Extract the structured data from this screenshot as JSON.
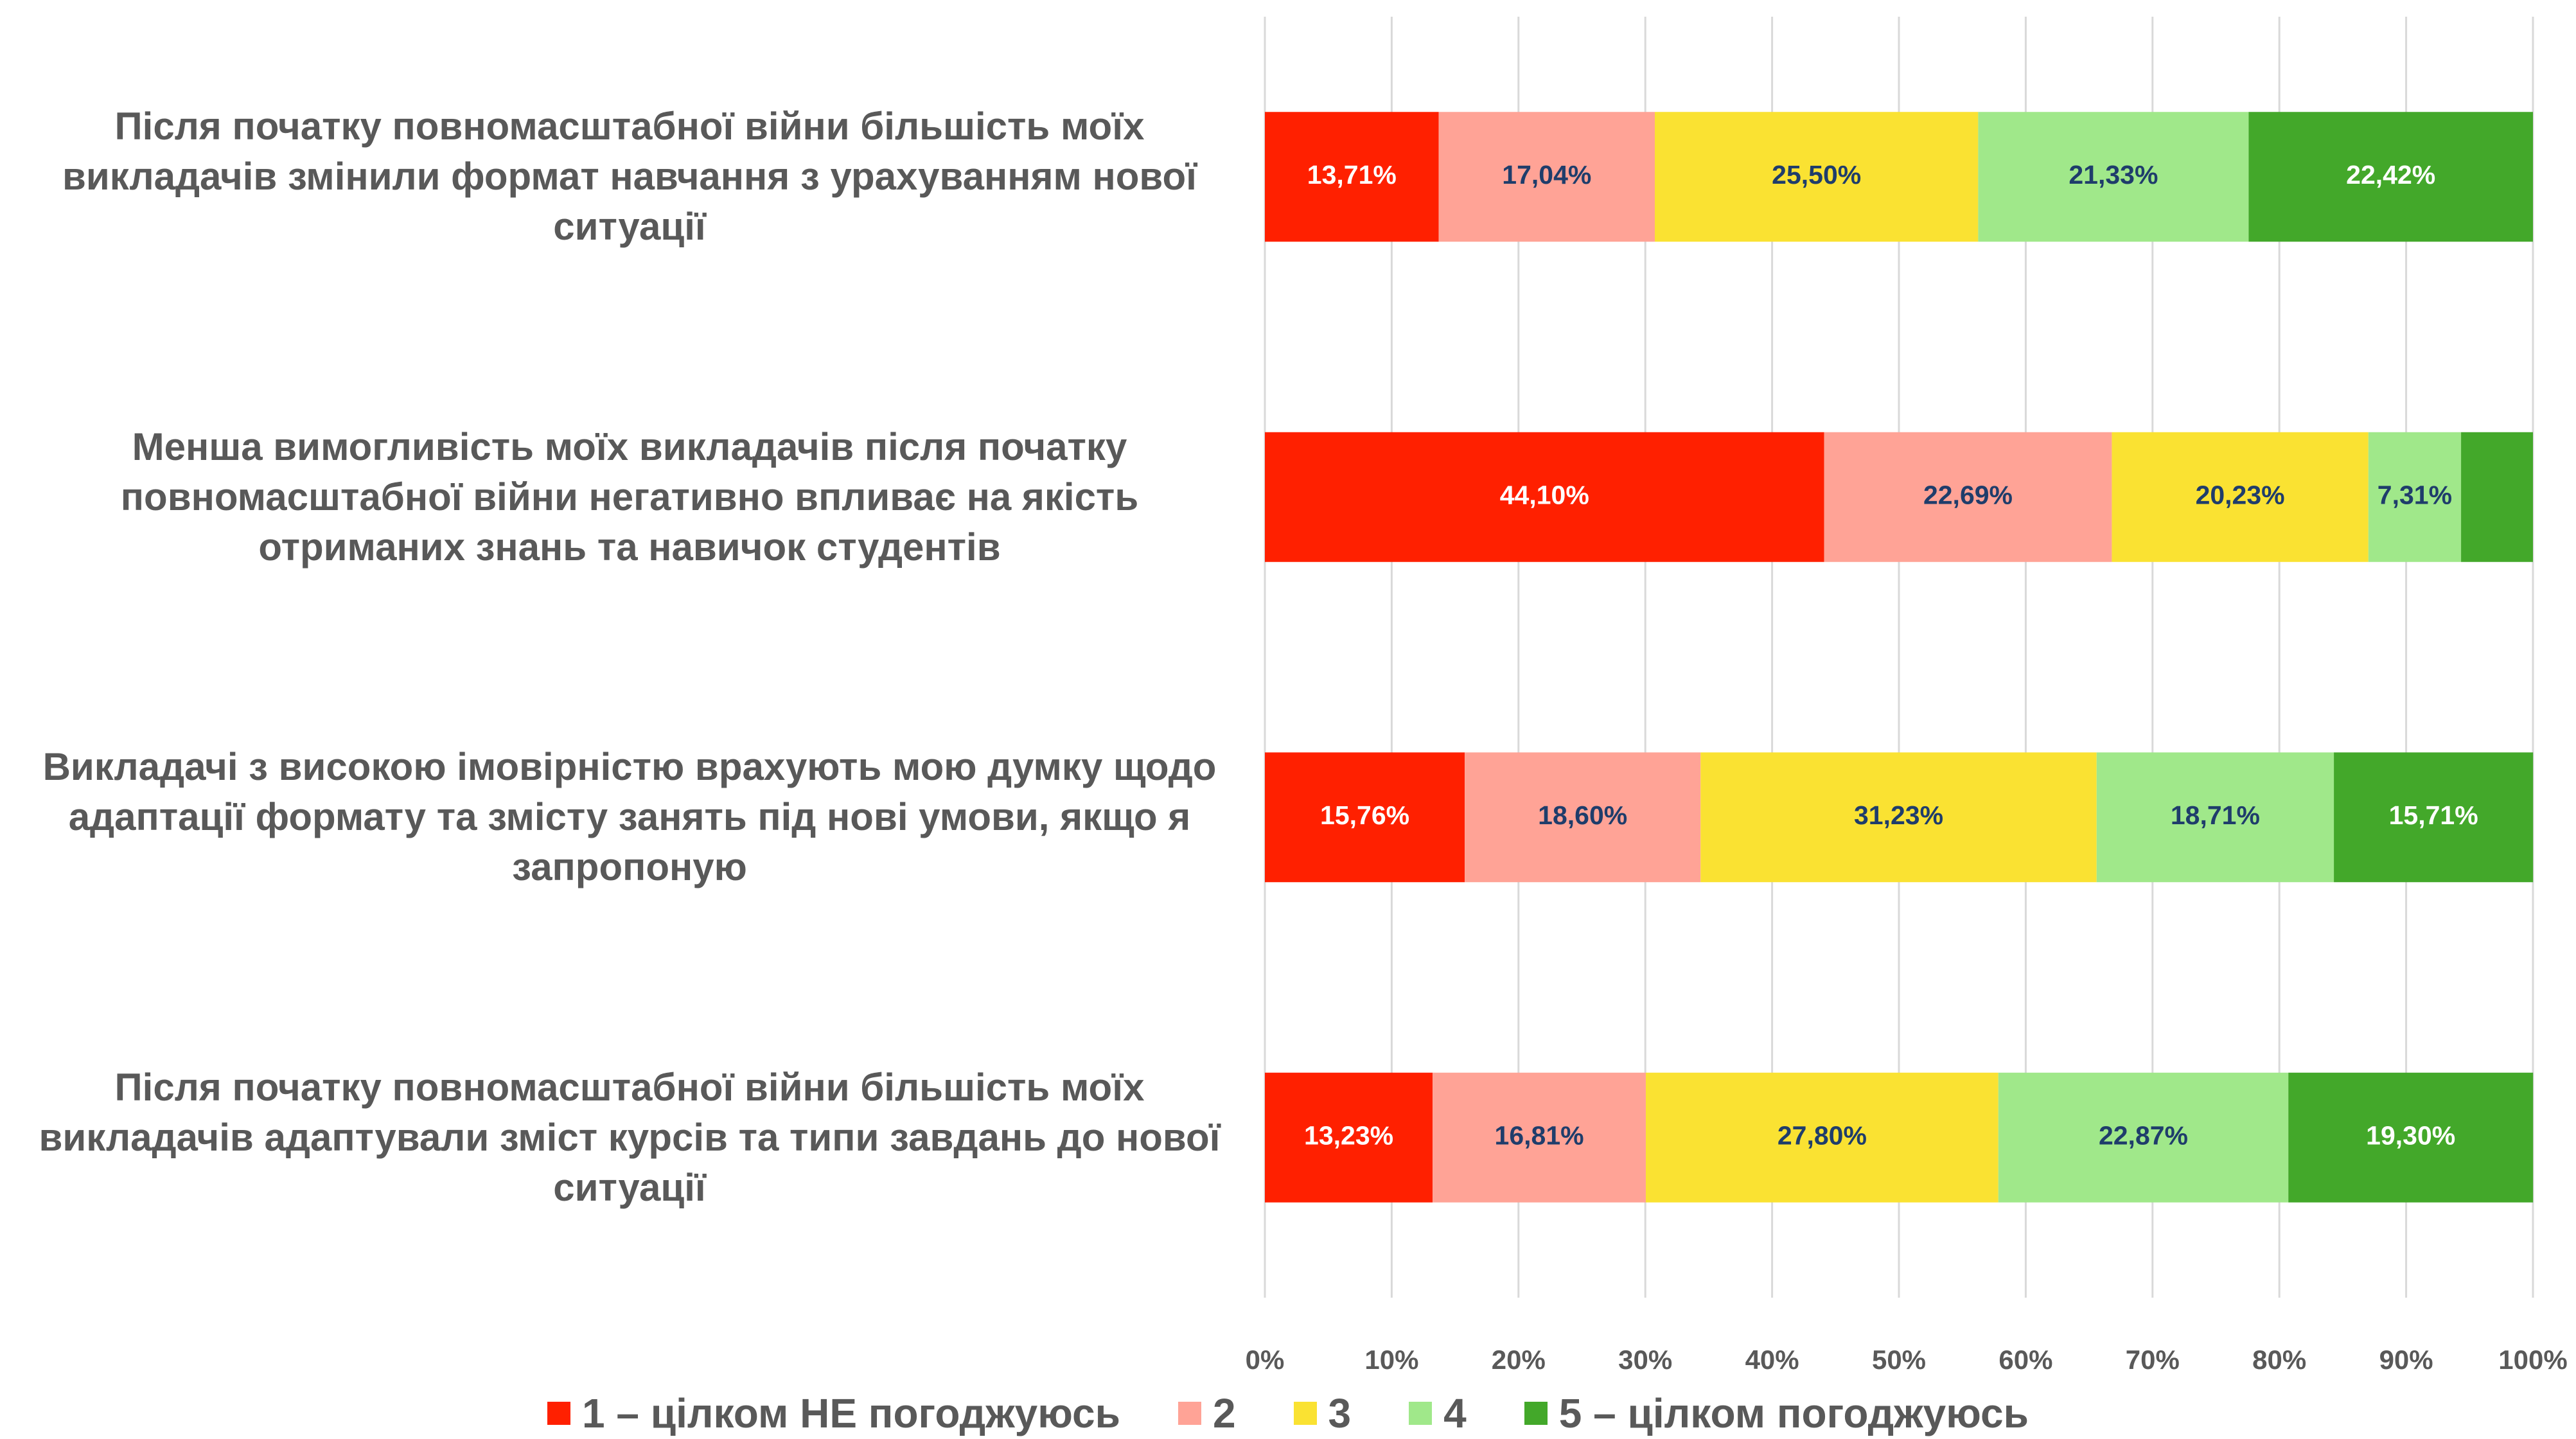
{
  "chart_data": {
    "type": "stacked_bar_horizontal",
    "categories": [
      "Після початку повномасштабної війни більшість моїх викладачів змінили формат навчання з урахуванням нової ситуації",
      "Менша вимогливість моїх викладачів після початку повномасштабної війни негативно впливає на якість отриманих знань та навичок студентів",
      "Викладачі з високою імовірністю врахують мою думку щодо адаптації формату та змісту занять під нові умови, якщо я запропоную",
      "Після початку повномасштабної війни більшість моїх викладачів адаптували зміст курсів та типи завдань до нової ситуації"
    ],
    "series": [
      {
        "name": "1 – цілком НЕ погоджуюсь",
        "color": "#ff2000",
        "label_color": "#ffffff",
        "values": [
          13.71,
          44.1,
          15.76,
          13.23
        ],
        "value_labels": [
          "13,71%",
          "44,10%",
          "15,76%",
          "13,23%"
        ]
      },
      {
        "name": "2",
        "color": "#ffa396",
        "label_color": "#1f3d6b",
        "values": [
          17.04,
          22.69,
          18.6,
          16.81
        ],
        "value_labels": [
          "17,04%",
          "22,69%",
          "18,60%",
          "16,81%"
        ]
      },
      {
        "name": "3",
        "color": "#fae232",
        "label_color": "#1f3d6b",
        "values": [
          25.5,
          20.23,
          31.23,
          27.8
        ],
        "value_labels": [
          "25,50%",
          "20,23%",
          "31,23%",
          "27,80%"
        ]
      },
      {
        "name": "4",
        "color": "#a0e88a",
        "label_color": "#1f3d6b",
        "values": [
          21.33,
          7.31,
          18.71,
          22.87
        ],
        "value_labels": [
          "21,33%",
          "7,31%",
          "18,71%",
          "22,87%"
        ]
      },
      {
        "name": "5 – цілком погоджуюсь",
        "color": "#43a82a",
        "label_color": "#ffffff",
        "values": [
          22.42,
          5.67,
          15.71,
          19.3
        ],
        "value_labels": [
          "22,42%",
          null,
          "15,71%",
          "19,30%"
        ]
      }
    ],
    "xlim": [
      0,
      100
    ],
    "xticks": [
      {
        "value": 0,
        "label": "0%"
      },
      {
        "value": 10,
        "label": "10%"
      },
      {
        "value": 20,
        "label": "20%"
      },
      {
        "value": 30,
        "label": "30%"
      },
      {
        "value": 40,
        "label": "40%"
      },
      {
        "value": 50,
        "label": "50%"
      },
      {
        "value": 60,
        "label": "60%"
      },
      {
        "value": 70,
        "label": "70%"
      },
      {
        "value": 80,
        "label": "80%"
      },
      {
        "value": 90,
        "label": "90%"
      },
      {
        "value": 100,
        "label": "100%"
      }
    ],
    "grid": true,
    "legend": "bottom"
  }
}
